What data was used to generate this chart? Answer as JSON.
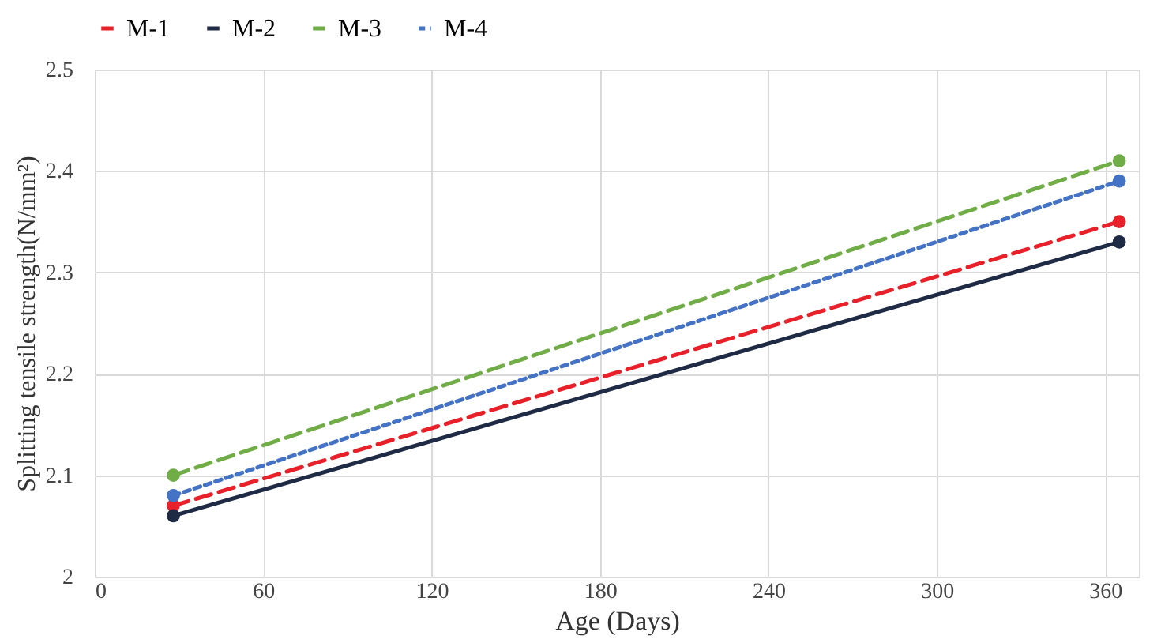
{
  "chart_data": {
    "type": "line",
    "xlabel": "Age (Days)",
    "ylabel": "Splitting tensile strength(N/mm²)",
    "x": [
      28,
      365
    ],
    "series": [
      {
        "name": "M-1",
        "color": "#e8202a",
        "values": [
          2.07,
          2.35
        ],
        "line_style": "dashed",
        "marker": "circle"
      },
      {
        "name": "M-2",
        "color": "#1f2a44",
        "values": [
          2.06,
          2.33
        ],
        "line_style": "solid",
        "marker": "circle"
      },
      {
        "name": "M-3",
        "color": "#70ad47",
        "values": [
          2.1,
          2.41
        ],
        "line_style": "dashed",
        "marker": "circle"
      },
      {
        "name": "M-4",
        "color": "#4472c4",
        "values": [
          2.08,
          2.39
        ],
        "line_style": "dotted",
        "marker": "circle"
      }
    ],
    "xlim": [
      0,
      372
    ],
    "xticks": [
      0,
      60,
      120,
      180,
      240,
      300,
      360
    ],
    "ylim": [
      2,
      2.5
    ],
    "yticks": [
      2,
      2.1,
      2.2,
      2.3,
      2.4,
      2.5
    ],
    "grid": true,
    "legend": "top"
  }
}
